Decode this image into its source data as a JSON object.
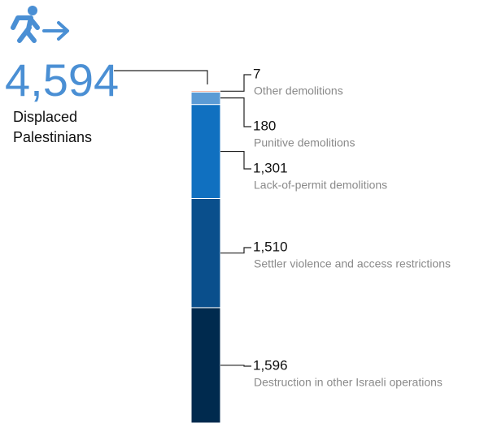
{
  "chart_data": {
    "type": "stacked-column",
    "total": {
      "value": 4594,
      "label": "4,594"
    },
    "total_caption": "Displaced Palestinians",
    "series": [
      {
        "name": "Other demolitions",
        "color": "#e8704a",
        "values": [
          7
        ],
        "value_labels": [
          "7"
        ]
      },
      {
        "name": "Punitive demolitions",
        "color": "#5b9bd5",
        "values": [
          180
        ],
        "value_labels": [
          "180"
        ]
      },
      {
        "name": "Lack-of-permit demolitions",
        "color": "#1070c0",
        "values": [
          1301
        ],
        "value_labels": [
          "1,301"
        ]
      },
      {
        "name": "Settler violence and access restrictions",
        "color": "#0a4f8c",
        "values": [
          1510
        ],
        "value_labels": [
          "1,510"
        ]
      },
      {
        "name": "Destruction in other Israeli operations",
        "color": "#002a4e",
        "values": [
          1596
        ],
        "value_labels": [
          "1,596"
        ]
      }
    ]
  }
}
